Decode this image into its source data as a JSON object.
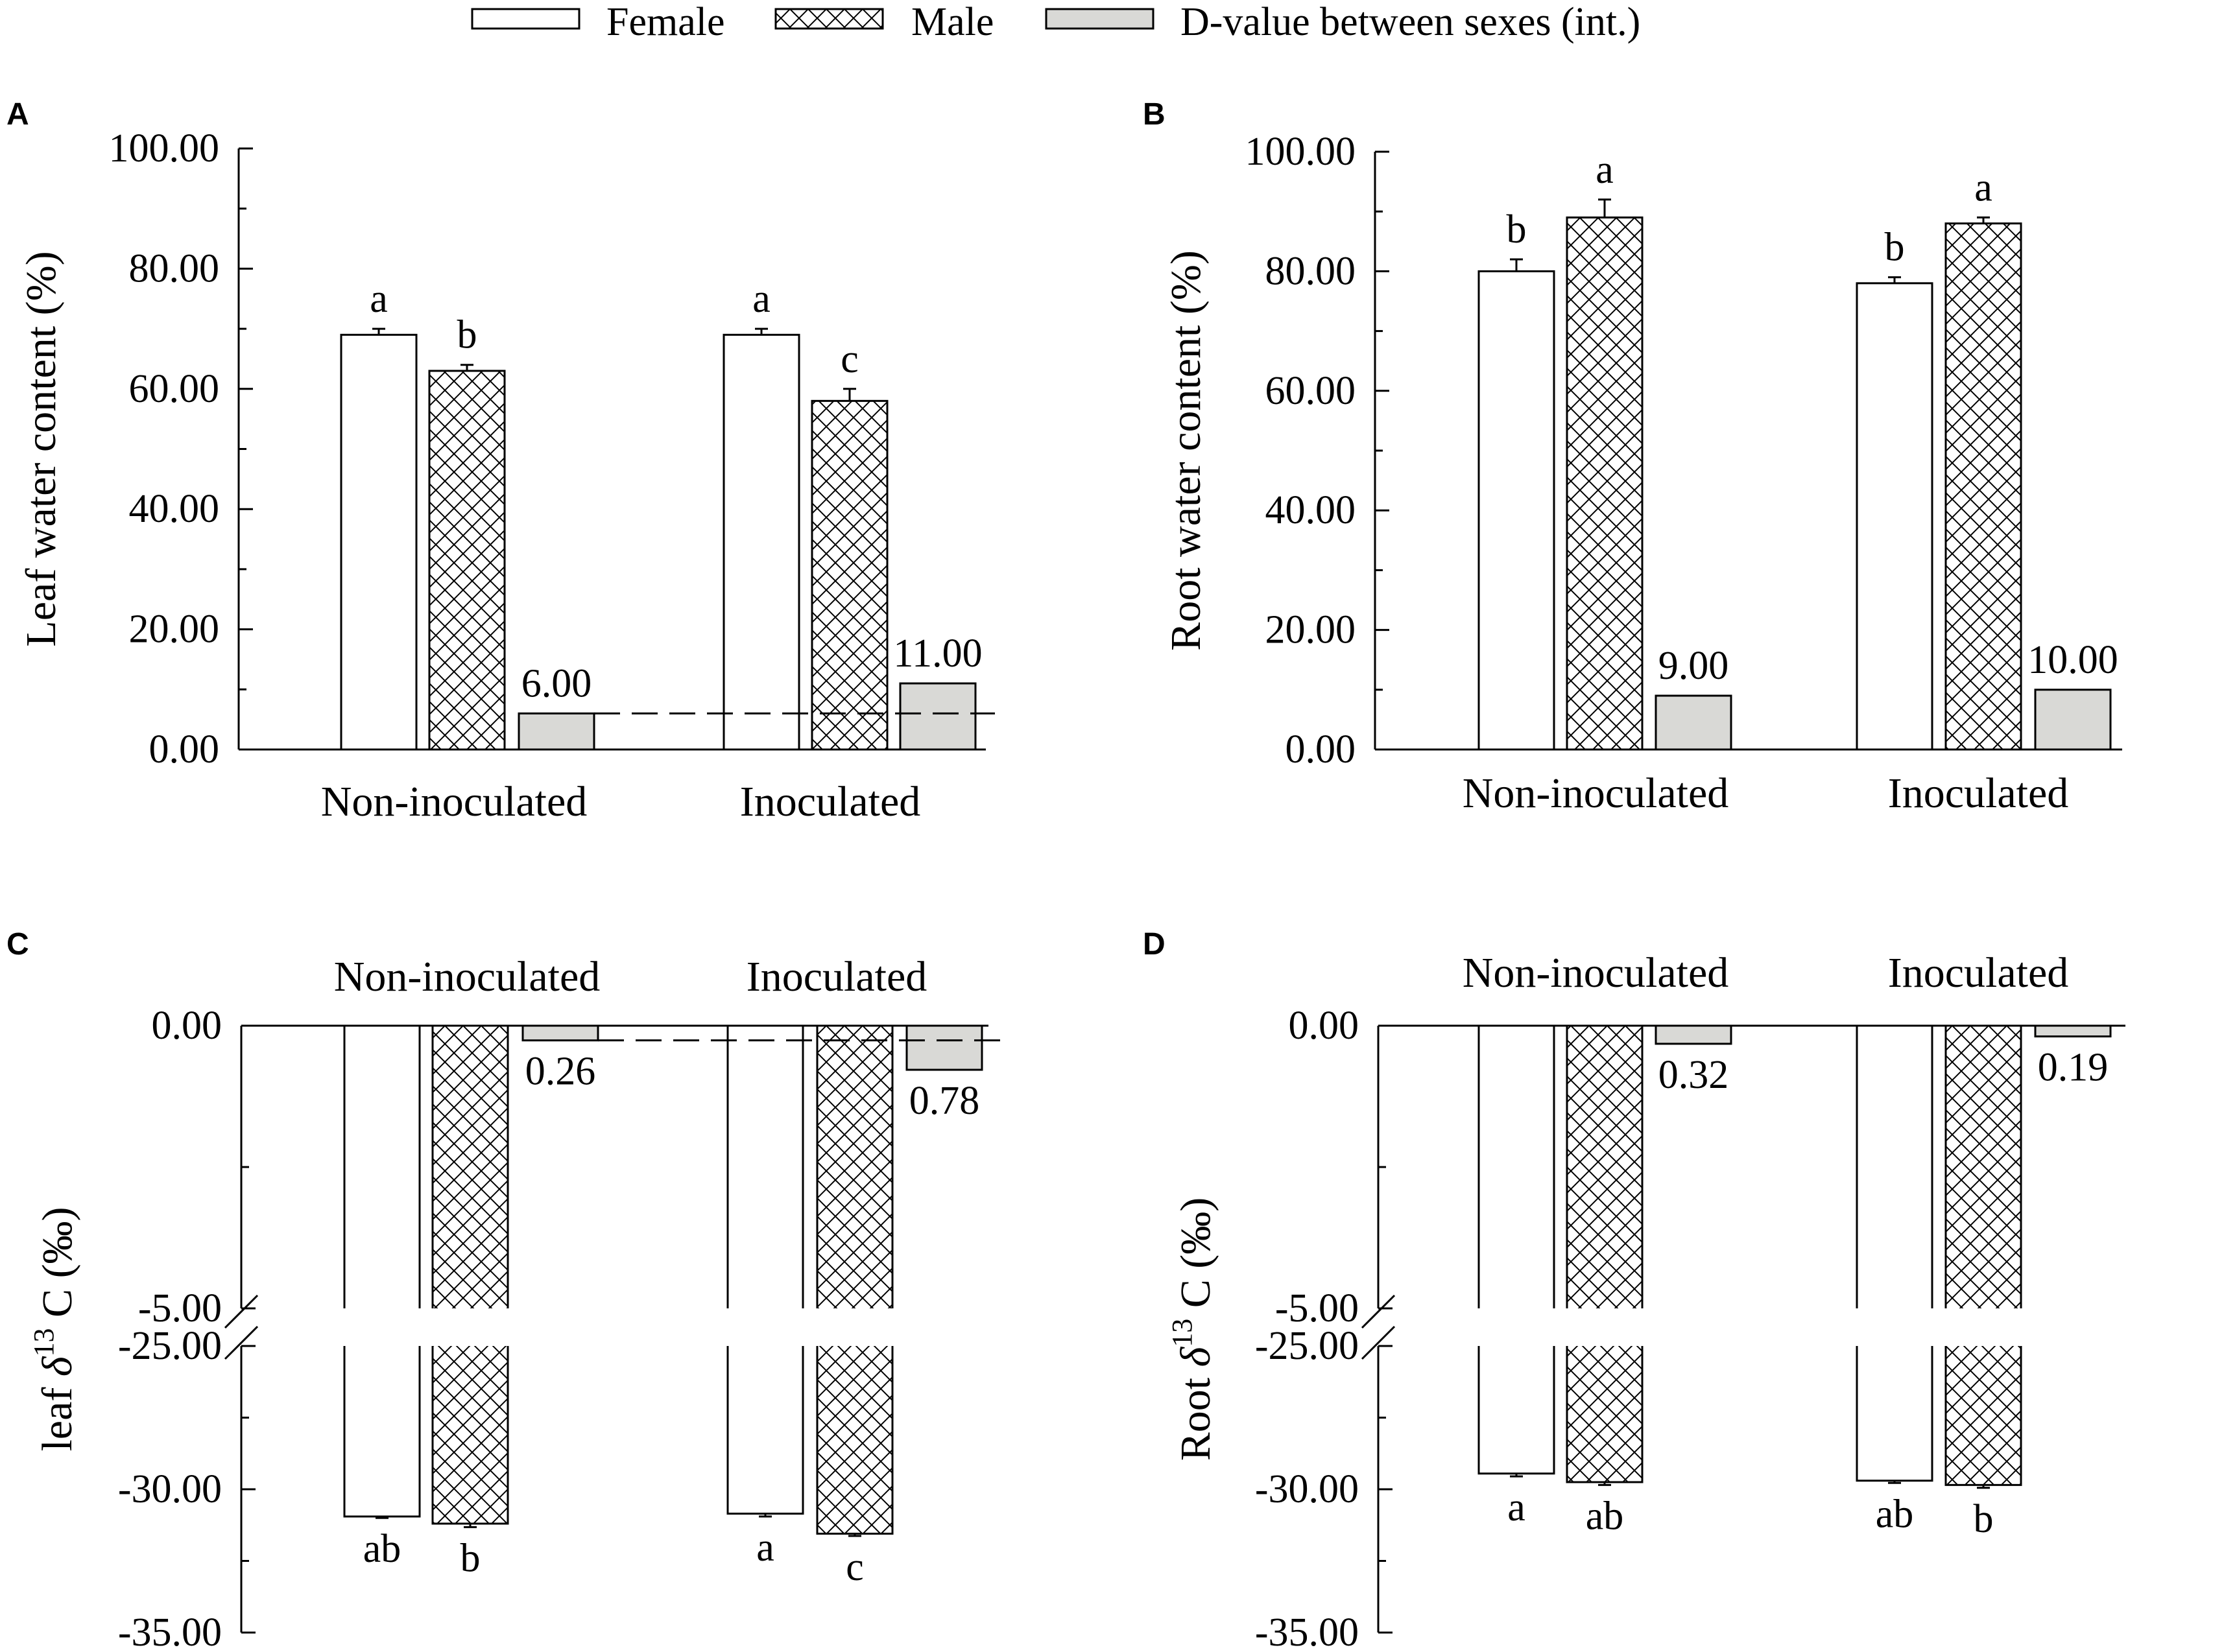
{
  "legend": {
    "female": "Female",
    "male": "Male",
    "dvalue": "D-value between sexes (int.)"
  },
  "colors": {
    "bar_female": "#ffffff",
    "bar_male": "#ffffff",
    "bar_dvalue": "#d9d9d6",
    "stroke": "#000000"
  },
  "chart_data": [
    {
      "panel": "A",
      "type": "bar",
      "ylabel": "Leaf water content (%)",
      "ylim": [
        0,
        100
      ],
      "yticks": [
        "100.00",
        "80.00",
        "60.00",
        "40.00",
        "20.00",
        "0.00"
      ],
      "categories": [
        "Non-inoculated",
        "Inoculated"
      ],
      "series": [
        {
          "name": "Female",
          "values": [
            69,
            69
          ],
          "errors": [
            1,
            1
          ]
        },
        {
          "name": "Male",
          "values": [
            63,
            58
          ],
          "errors": [
            1,
            2
          ]
        },
        {
          "name": "D-value between sexes (int.)",
          "values": [
            6,
            11
          ]
        }
      ],
      "significance": {
        "Female": [
          "a",
          "a"
        ],
        "Male": [
          "b",
          "c"
        ]
      },
      "dvalue_labels": [
        "6.00",
        "11.00"
      ],
      "reference_line": 6
    },
    {
      "panel": "B",
      "type": "bar",
      "ylabel": "Root water content (%)",
      "ylim": [
        0,
        100
      ],
      "yticks": [
        "100.00",
        "80.00",
        "60.00",
        "40.00",
        "20.00",
        "0.00"
      ],
      "categories": [
        "Non-inoculated",
        "Inoculated"
      ],
      "series": [
        {
          "name": "Female",
          "values": [
            80,
            78
          ],
          "errors": [
            2,
            1
          ]
        },
        {
          "name": "Male",
          "values": [
            89,
            88
          ],
          "errors": [
            3,
            1
          ]
        },
        {
          "name": "D-value between sexes (int.)",
          "values": [
            9,
            10
          ]
        }
      ],
      "significance": {
        "Female": [
          "b",
          "b"
        ],
        "Male": [
          "a",
          "a"
        ]
      },
      "dvalue_labels": [
        "9.00",
        "10.00"
      ]
    },
    {
      "panel": "C",
      "type": "bar",
      "ylabel_prefix": "leaf",
      "ylabel_sup": "13",
      "ylabel_suffix": "C (‰)",
      "yticks_upper": [
        "0.00",
        "-5.00"
      ],
      "yticks_lower": [
        "-25.00",
        "-30.00",
        "-35.00"
      ],
      "ylim_upper": [
        -5,
        0
      ],
      "ylim_lower": [
        -35,
        -25
      ],
      "axis_break": [
        -5,
        -25
      ],
      "categories": [
        "Non-inoculated",
        "Inoculated"
      ],
      "series": [
        {
          "name": "Female",
          "values": [
            -30.95,
            -30.85
          ],
          "errors": [
            0.05,
            0.1
          ]
        },
        {
          "name": "Male",
          "values": [
            -31.2,
            -31.55
          ],
          "errors": [
            0.12,
            0.08
          ]
        },
        {
          "name": "D-value between sexes (int.)",
          "values": [
            -0.26,
            -0.78
          ]
        }
      ],
      "significance": {
        "Female": [
          "ab",
          "a"
        ],
        "Male": [
          "b",
          "c"
        ]
      },
      "dvalue_labels": [
        "0.26",
        "0.78"
      ],
      "reference_line": -0.26
    },
    {
      "panel": "D",
      "type": "bar",
      "ylabel_prefix": "Root",
      "ylabel_sup": "13",
      "ylabel_suffix": "C (‰)",
      "yticks_upper": [
        "0.00",
        "-5.00"
      ],
      "yticks_lower": [
        "-25.00",
        "-30.00",
        "-35.00"
      ],
      "ylim_upper": [
        -5,
        0
      ],
      "ylim_lower": [
        -35,
        -25
      ],
      "axis_break": [
        -5,
        -25
      ],
      "categories": [
        "Non-inoculated",
        "Inoculated"
      ],
      "series": [
        {
          "name": "Female",
          "values": [
            -29.45,
            -29.7
          ],
          "errors": [
            0.1,
            0.08
          ]
        },
        {
          "name": "Male",
          "values": [
            -29.75,
            -29.85
          ],
          "errors": [
            0.1,
            0.1
          ]
        },
        {
          "name": "D-value between sexes (int.)",
          "values": [
            -0.32,
            -0.19
          ]
        }
      ],
      "significance": {
        "Female": [
          "a",
          "ab"
        ],
        "Male": [
          "ab",
          "b"
        ]
      },
      "dvalue_labels": [
        "0.32",
        "0.19"
      ]
    }
  ]
}
